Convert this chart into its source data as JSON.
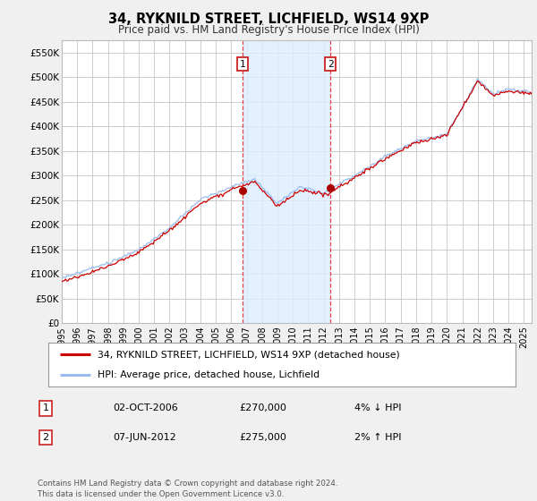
{
  "title": "34, RYKNILD STREET, LICHFIELD, WS14 9XP",
  "subtitle": "Price paid vs. HM Land Registry's House Price Index (HPI)",
  "ylim": [
    0,
    575000
  ],
  "yticks": [
    0,
    50000,
    100000,
    150000,
    200000,
    250000,
    300000,
    350000,
    400000,
    450000,
    500000,
    550000
  ],
  "ytick_labels": [
    "£0",
    "£50K",
    "£100K",
    "£150K",
    "£200K",
    "£250K",
    "£300K",
    "£350K",
    "£400K",
    "£450K",
    "£500K",
    "£550K"
  ],
  "xlim_start": 1995.0,
  "xlim_end": 2025.5,
  "xticks": [
    1995,
    1996,
    1997,
    1998,
    1999,
    2000,
    2001,
    2002,
    2003,
    2004,
    2005,
    2006,
    2007,
    2008,
    2009,
    2010,
    2011,
    2012,
    2013,
    2014,
    2015,
    2016,
    2017,
    2018,
    2019,
    2020,
    2021,
    2022,
    2023,
    2024,
    2025
  ],
  "background_color": "#f0f0f0",
  "plot_bg_color": "#ffffff",
  "grid_color": "#cccccc",
  "line1_color": "#cc0000",
  "line2_color": "#99bbee",
  "marker_color": "#aa0000",
  "sale1_x": 2006.75,
  "sale1_y": 270000,
  "sale2_x": 2012.43,
  "sale2_y": 275000,
  "shade_color": "#ddeeff",
  "legend_line1": "34, RYKNILD STREET, LICHFIELD, WS14 9XP (detached house)",
  "legend_line2": "HPI: Average price, detached house, Lichfield",
  "annotation1_label": "1",
  "annotation1_date": "02-OCT-2006",
  "annotation1_price": "£270,000",
  "annotation1_hpi": "4% ↓ HPI",
  "annotation2_label": "2",
  "annotation2_date": "07-JUN-2012",
  "annotation2_price": "£275,000",
  "annotation2_hpi": "2% ↑ HPI",
  "footer": "Contains HM Land Registry data © Crown copyright and database right 2024.\nThis data is licensed under the Open Government Licence v3.0."
}
